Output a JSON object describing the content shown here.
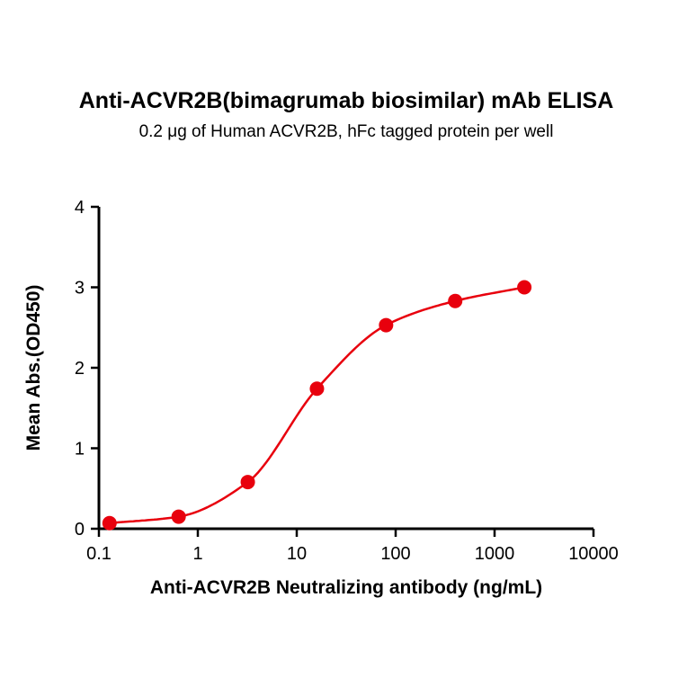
{
  "figure": {
    "title": "Anti-ACVR2B(bimagrumab biosimilar) mAb ELISA",
    "subtitle": "0.2 μg of Human ACVR2B, hFc tagged protein per well"
  },
  "chart_data": {
    "type": "scatter",
    "title": "Anti-ACVR2B(bimagrumab biosimilar) mAb ELISA",
    "subtitle": "0.2 μg of Human ACVR2B, hFc tagged protein per well",
    "xlabel": "Anti-ACVR2B Neutralizing antibody (ng/mL)",
    "ylabel": "Mean Abs.(OD450)",
    "x_scale": "log10",
    "xlim": [
      0.1,
      10000
    ],
    "ylim": [
      0,
      4
    ],
    "x_tick_labels": [
      "0.1",
      "1",
      "10",
      "100",
      "1000",
      "10000"
    ],
    "x_tick_values": [
      0.1,
      1,
      10,
      100,
      1000,
      10000
    ],
    "y_tick_labels": [
      "0",
      "1",
      "2",
      "3",
      "4"
    ],
    "y_tick_values": [
      0,
      1,
      2,
      3,
      4
    ],
    "x": [
      0.128,
      0.64,
      3.2,
      16,
      80,
      400,
      2000
    ],
    "y": [
      0.07,
      0.15,
      0.58,
      1.74,
      2.53,
      2.83,
      3.0
    ],
    "series_name": "Mean Abs.(OD450)",
    "curve": "sigmoidal dose-response fit through points",
    "grid": false,
    "legend": false,
    "marker_color": "#e8000d",
    "line_color": "#e8000d",
    "axis_color": "#000000"
  }
}
